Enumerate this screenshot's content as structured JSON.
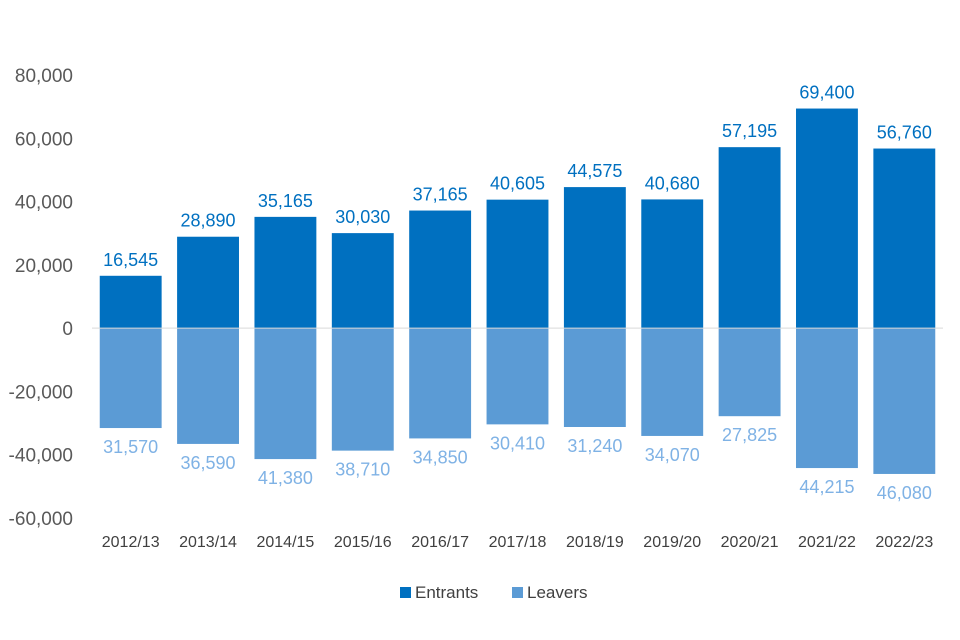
{
  "chart_data": {
    "type": "bar",
    "stacked": "diverging",
    "categories": [
      "2012/13",
      "2013/14",
      "2014/15",
      "2015/16",
      "2016/17",
      "2017/18",
      "2018/19",
      "2019/20",
      "2020/21",
      "2021/22",
      "2022/23"
    ],
    "series": [
      {
        "name": "Entrants",
        "color": "#0070c0",
        "label_color": "#0070c0",
        "values": [
          16545,
          28890,
          35165,
          30030,
          37165,
          40605,
          44575,
          40680,
          57195,
          69400,
          56760
        ],
        "labels": [
          "16,545",
          "28,890",
          "35,165",
          "30,030",
          "37,165",
          "40,605",
          "44,575",
          "40,680",
          "57,195",
          "69,400",
          "56,760"
        ]
      },
      {
        "name": "Leavers",
        "color": "#5b9bd5",
        "label_color": "#7fb2e5",
        "values": [
          -31570,
          -36590,
          -41380,
          -38710,
          -34850,
          -30410,
          -31240,
          -34070,
          -27825,
          -44215,
          -46080
        ],
        "labels": [
          "31,570",
          "36,590",
          "41,380",
          "38,710",
          "34,850",
          "30,410",
          "31,240",
          "34,070",
          "27,825",
          "44,215",
          "46,080"
        ]
      }
    ],
    "y_ticks": [
      80000,
      60000,
      40000,
      20000,
      0,
      -20000,
      -40000,
      -60000
    ],
    "y_tick_labels": [
      "80,000",
      "60,000",
      "40,000",
      "20,000",
      "0",
      "-20,000",
      "-40,000",
      "-60,000"
    ],
    "ylim": [
      -60000,
      80000
    ],
    "title": "",
    "xlabel": "",
    "ylabel": "",
    "grid": false,
    "legend": "bottom-center"
  }
}
